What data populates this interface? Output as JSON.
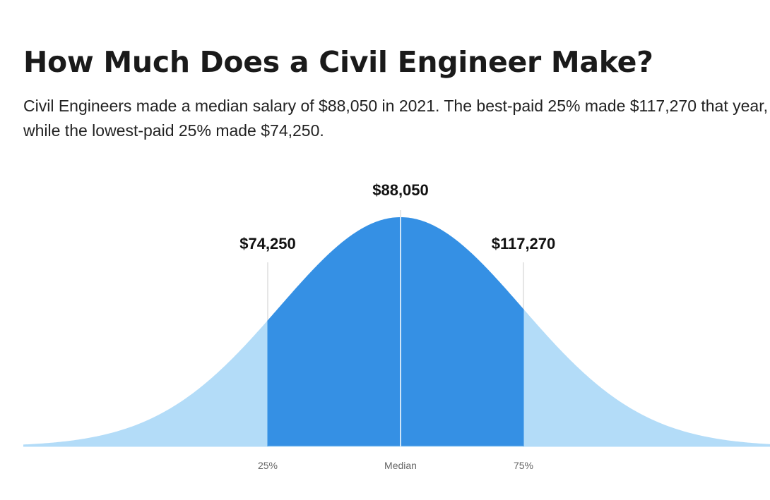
{
  "title": "How Much Does a Civil Engineer Make?",
  "subtitle": "Civil Engineers made a median salary of $88,050 in 2021. The best-paid 25% made $117,270 that year, while the lowest-paid 25% made $74,250.",
  "chart_data": {
    "type": "area",
    "distribution": "bell-curve",
    "markers": [
      {
        "tick_label": "25%",
        "value_label": "$74,250",
        "value": 74250
      },
      {
        "tick_label": "Median",
        "value_label": "$88,050",
        "value": 88050
      },
      {
        "tick_label": "75%",
        "value_label": "$117,270",
        "value": 117270
      }
    ],
    "colors": {
      "outer": "#b3dcf8",
      "inner": "#3590e4",
      "guide": "#d6d6d6",
      "center_line": "#ffffff"
    }
  }
}
